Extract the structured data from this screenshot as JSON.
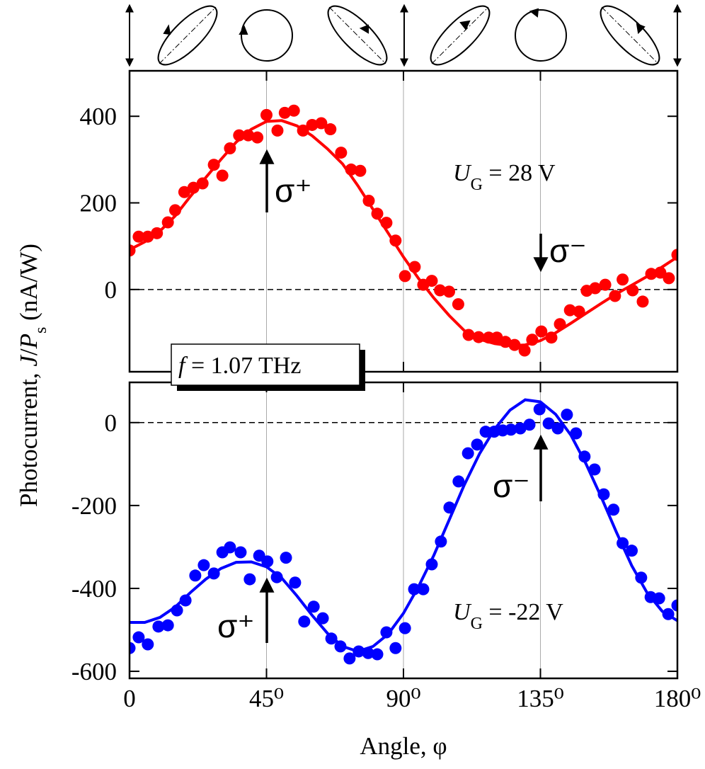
{
  "chart_data": [
    {
      "type": "scatter",
      "ylabel_parts": [
        "Photocurrent, ",
        "J",
        "/",
        "P",
        "s",
        " (nA/W)"
      ],
      "xlim": [
        0,
        180
      ],
      "ylim": [
        -190,
        505
      ],
      "yticks": [
        0,
        200,
        400
      ],
      "xgrid": true,
      "zero_line": true,
      "series": [
        {
          "mode": "markers",
          "color": "#ff0000",
          "x": [
            0,
            3,
            6,
            9,
            12.6,
            15,
            18,
            21,
            24,
            27.7,
            30.5,
            33,
            36,
            39,
            42,
            45,
            48.6,
            51,
            54,
            57,
            60,
            63,
            66,
            69.5,
            72.8,
            75.8,
            78.6,
            81.4,
            84.4,
            87.4,
            90.5,
            93.7,
            96.5,
            99.3,
            102,
            105,
            108,
            111.4,
            114.7,
            118,
            120.7,
            123.5,
            126.5,
            129.8,
            132.3,
            135.3,
            138.6,
            141.4,
            144.7,
            147.7,
            150.2,
            153,
            156.3,
            159.5,
            162,
            165.3,
            168.6,
            171.4,
            174.4,
            177.2,
            180
          ],
          "values": [
            90,
            122,
            122,
            130,
            155,
            183,
            225,
            235,
            245,
            288,
            263,
            326,
            356,
            356,
            351,
            403,
            367,
            408,
            413,
            367,
            380,
            384,
            370,
            316,
            277,
            274,
            205,
            175,
            154,
            113,
            31,
            52,
            11,
            20,
            -2,
            -5,
            -34,
            -105,
            -110,
            -111,
            -111,
            -121,
            -128,
            -141,
            -116,
            -97,
            -111,
            -80,
            -48,
            -51,
            -3,
            3,
            11,
            -15,
            23,
            -2,
            -28,
            36,
            39,
            26,
            80
          ]
        },
        {
          "mode": "line",
          "color": "#ff0000",
          "x": [
            0,
            5,
            10,
            15,
            20,
            25,
            30,
            35,
            40,
            45,
            50,
            55,
            60,
            65,
            70,
            75,
            80,
            85,
            90,
            95,
            100,
            105,
            110,
            115,
            120,
            125,
            130,
            135,
            140,
            145,
            150,
            155,
            160,
            165,
            170,
            175,
            180
          ],
          "values": [
            92,
            110,
            135,
            170,
            215,
            258,
            300,
            340,
            370,
            388,
            390,
            378,
            355,
            325,
            290,
            240,
            185,
            130,
            75,
            25,
            -20,
            -60,
            -95,
            -115,
            -125,
            -130,
            -128,
            -118,
            -100,
            -78,
            -55,
            -32,
            -10,
            10,
            30,
            52,
            75
          ]
        }
      ],
      "annotations": [
        {
          "text": "σ⁺"
        },
        {
          "text": "σ⁻"
        },
        {
          "parts": [
            "U",
            "G",
            " = 28 V"
          ]
        }
      ],
      "frequency_parts": [
        "f",
        " = 1.07  THz"
      ]
    },
    {
      "type": "scatter",
      "xlabel": "Angle,  φ",
      "xlim": [
        0,
        180
      ],
      "xticks": [
        0,
        {
          "value": 45,
          "label": "45⁰"
        },
        {
          "value": 90,
          "label": "90⁰"
        },
        {
          "value": 135,
          "label": "135⁰"
        },
        {
          "value": 180,
          "label": "180⁰"
        }
      ],
      "ylim": [
        -617,
        97
      ],
      "yticks": [
        -600,
        -400,
        -200,
        0
      ],
      "xgrid": true,
      "zero_line": true,
      "series": [
        {
          "mode": "markers",
          "color": "#0000ff",
          "x": [
            0,
            3,
            6,
            9.5,
            12.6,
            15.6,
            18.4,
            21.6,
            24.4,
            27.7,
            30.5,
            33,
            36.5,
            39.5,
            42.6,
            45.3,
            48.4,
            51.4,
            54.4,
            57.4,
            60.5,
            63.5,
            66.3,
            69.3,
            72.3,
            75.3,
            78.4,
            81.4,
            84.4,
            87.4,
            90.5,
            93.5,
            96.5,
            99.3,
            102.3,
            105.1,
            108.1,
            111.2,
            114.2,
            117,
            119.8,
            122.6,
            125.3,
            128.4,
            131.4,
            134.7,
            137.7,
            140.7,
            143.7,
            146.7,
            149.5,
            152.8,
            155.8,
            159,
            162,
            165,
            168.1,
            171.2,
            174,
            177,
            180
          ],
          "values": [
            -544,
            -518,
            -535,
            -492,
            -489,
            -453,
            -429,
            -369,
            -344,
            -364,
            -313,
            -301,
            -313,
            -378,
            -321,
            -335,
            -373,
            -326,
            -386,
            -480,
            -444,
            -472,
            -521,
            -540,
            -569,
            -552,
            -556,
            -559,
            -506,
            -544,
            -496,
            -402,
            -402,
            -342,
            -287,
            -205,
            -142,
            -74,
            -53,
            -22,
            -22,
            -19,
            -17,
            -14,
            -5,
            32,
            -2,
            -14,
            19,
            -26,
            -82,
            -113,
            -173,
            -210,
            -291,
            -309,
            -374,
            -421,
            -424,
            -462,
            -441
          ]
        },
        {
          "mode": "line",
          "color": "#0000ff",
          "x": [
            0,
            5,
            10,
            15,
            20,
            25,
            30,
            35,
            40,
            45,
            50,
            55,
            60,
            65,
            70,
            75,
            80,
            85,
            90,
            95,
            100,
            105,
            110,
            115,
            120,
            125,
            130,
            135,
            140,
            145,
            150,
            155,
            160,
            165,
            170,
            175,
            180
          ],
          "values": [
            -482,
            -482,
            -470,
            -445,
            -410,
            -378,
            -352,
            -337,
            -336,
            -348,
            -375,
            -418,
            -465,
            -508,
            -540,
            -552,
            -540,
            -510,
            -460,
            -395,
            -320,
            -235,
            -150,
            -75,
            -15,
            30,
            55,
            50,
            20,
            -30,
            -100,
            -180,
            -265,
            -345,
            -410,
            -455,
            -478
          ]
        }
      ],
      "annotations": [
        {
          "text": "σ⁻"
        },
        {
          "text": "σ⁺"
        },
        {
          "parts": [
            "U",
            "G",
            " = -22 V"
          ]
        }
      ]
    }
  ]
}
